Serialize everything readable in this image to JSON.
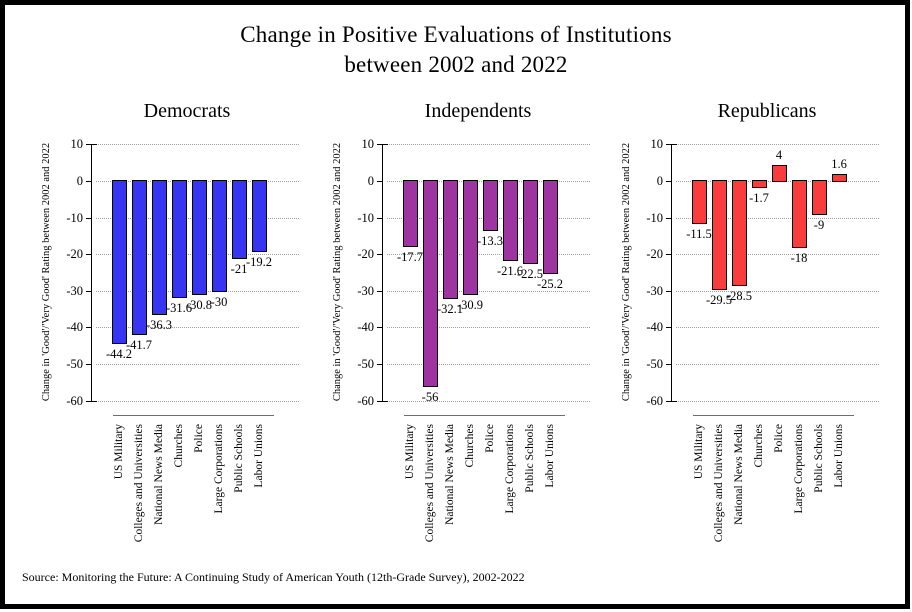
{
  "title": {
    "line1": "Change in Positive Evaluations of Institutions",
    "line2": "between 2002 and 2022"
  },
  "source_note": "Source: Monitoring the Future: A Continuing Study of American Youth (12th-Grade Survey), 2002-2022",
  "chart_data": {
    "type": "bar",
    "layout": "three side-by-side panels (small multiples), vertical bars from zero baseline, dotted horizontal gridlines, no legend",
    "categories": [
      "US Military",
      "Colleges and Universities",
      "National News Media",
      "Churches",
      "Police",
      "Large Corporations",
      "Public Schools",
      "Labor Unions"
    ],
    "ylabel": "Change in 'Good'/'Very Good' Rating between 2002 and 2022",
    "ylim": [
      -60,
      10
    ],
    "yticks": [
      10,
      0,
      -10,
      -20,
      -30,
      -40,
      -50,
      -60
    ],
    "grid": "dotted horizontal gridlines at every tick",
    "bar_outline_color": "#000000",
    "panels": [
      {
        "title": "Democrats",
        "bar_color": "#3734f2",
        "values": [
          -44.2,
          -41.7,
          -36.3,
          -31.6,
          -30.8,
          -30,
          -21,
          -19.2
        ]
      },
      {
        "title": "Independents",
        "bar_color": "#9e34a0",
        "values": [
          -17.7,
          -56,
          -32.1,
          -30.9,
          -13.3,
          -21.6,
          -22.5,
          -25.2
        ]
      },
      {
        "title": "Republicans",
        "bar_color": "#fa3c3c",
        "values": [
          -11.5,
          -29.5,
          -28.5,
          -1.7,
          4,
          -18,
          -9,
          1.6
        ]
      }
    ]
  }
}
